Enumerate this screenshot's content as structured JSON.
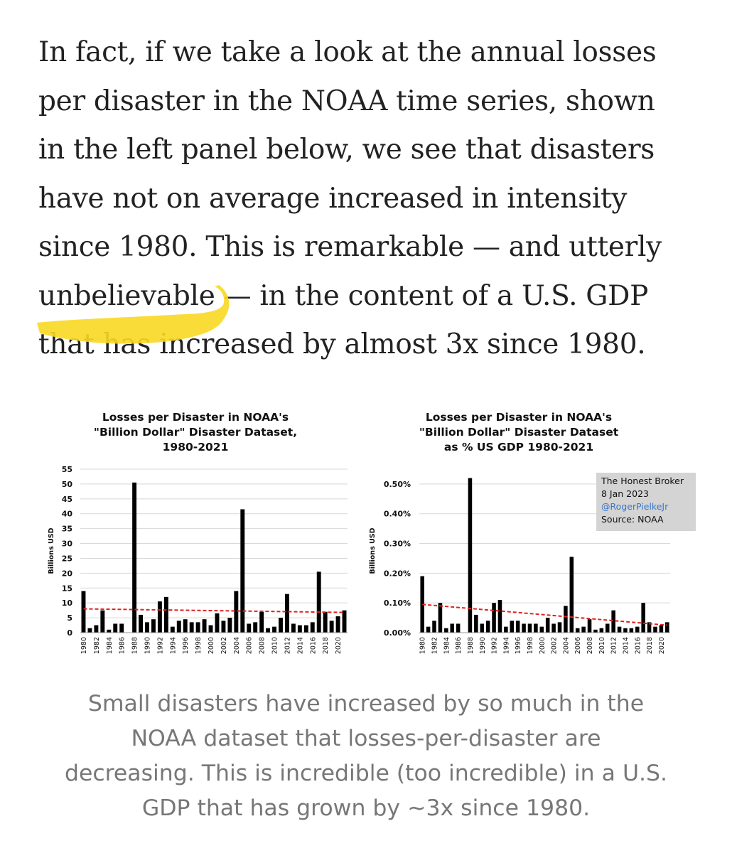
{
  "article": {
    "lines": [
      "In fact, if we take a look at the annual losses",
      "per disaster in the NOAA time series, shown",
      "in the left panel below, we see that disasters",
      "have not on average increased in intensity",
      "since 1980. This is remarkable — and utterly"
    ],
    "line6_highlight": "unbelievable",
    "line6_rest": " — in the content of a U.S. GDP",
    "line7": "that has increased by almost 3x since 1980.",
    "highlight_color": "#f9d824"
  },
  "watermark": {
    "line1": "The Honest Broker",
    "line2": "8 Jan 2023",
    "line3": "@RogerPielkeJr",
    "line4": "Source: NOAA"
  },
  "caption": {
    "lines": [
      "Small disasters have increased by so much in the",
      "NOAA dataset that losses-per-disaster are",
      "decreasing. This is incredible (too incredible) in a U.S.",
      "GDP that has grown by ~3x since 1980."
    ]
  },
  "chart_data": [
    {
      "type": "bar",
      "title": [
        "Losses per Disaster in NOAA's",
        "\"Billion Dollar\" Disaster Dataset,",
        "1980-2021"
      ],
      "xlabel": "",
      "ylabel": "Billions USD",
      "ylim": [
        0,
        55
      ],
      "yticks": [
        0,
        5,
        10,
        15,
        20,
        25,
        30,
        35,
        40,
        45,
        50,
        55
      ],
      "ytick_labels": [
        "0",
        "5",
        "10",
        "15",
        "20",
        "25",
        "30",
        "35",
        "40",
        "45",
        "50",
        "55"
      ],
      "grid": true,
      "categories": [
        1980,
        1981,
        1982,
        1983,
        1984,
        1985,
        1986,
        1987,
        1988,
        1989,
        1990,
        1991,
        1992,
        1993,
        1994,
        1995,
        1996,
        1997,
        1998,
        1999,
        2000,
        2001,
        2002,
        2003,
        2004,
        2005,
        2006,
        2007,
        2008,
        2009,
        2010,
        2011,
        2012,
        2013,
        2014,
        2015,
        2016,
        2017,
        2018,
        2019,
        2020,
        2021
      ],
      "xtick_labels": [
        "1980",
        "1982",
        "1984",
        "1986",
        "1988",
        "1990",
        "1992",
        "1994",
        "1996",
        "1998",
        "2000",
        "2002",
        "2004",
        "2006",
        "2008",
        "2010",
        "2012",
        "2014",
        "2016",
        "2018",
        "2020"
      ],
      "values": [
        14,
        1.5,
        2.5,
        7.5,
        1,
        3,
        3,
        0,
        50.5,
        6,
        3.5,
        4.5,
        10.5,
        12,
        2,
        4,
        4.5,
        3.5,
        3.5,
        4.5,
        2.5,
        6.5,
        4,
        5,
        14,
        41.5,
        3,
        3.5,
        7,
        1.5,
        2,
        5,
        13,
        3,
        2.5,
        2.5,
        3.5,
        20.5,
        7,
        4,
        5.5,
        7.5
      ],
      "trend": {
        "start": 8,
        "end": 6.8,
        "style": "red dashed"
      }
    },
    {
      "type": "bar",
      "title": [
        "Losses per Disaster in NOAA's",
        "\"Billion Dollar\" Disaster Dataset",
        "as % US GDP 1980-2021"
      ],
      "xlabel": "",
      "ylabel": "Billions USD",
      "ylim": [
        0,
        0.55
      ],
      "yticks": [
        0,
        0.1,
        0.2,
        0.3,
        0.4,
        0.5
      ],
      "ytick_labels": [
        "0.00%",
        "0.10%",
        "0.20%",
        "0.30%",
        "0.40%",
        "0.50%"
      ],
      "grid": true,
      "categories": [
        1980,
        1981,
        1982,
        1983,
        1984,
        1985,
        1986,
        1987,
        1988,
        1989,
        1990,
        1991,
        1992,
        1993,
        1994,
        1995,
        1996,
        1997,
        1998,
        1999,
        2000,
        2001,
        2002,
        2003,
        2004,
        2005,
        2006,
        2007,
        2008,
        2009,
        2010,
        2011,
        2012,
        2013,
        2014,
        2015,
        2016,
        2017,
        2018,
        2019,
        2020,
        2021
      ],
      "xtick_labels": [
        "1980",
        "1982",
        "1984",
        "1986",
        "1988",
        "1990",
        "1992",
        "1994",
        "1996",
        "1998",
        "2000",
        "2002",
        "2004",
        "2006",
        "2008",
        "2010",
        "2012",
        "2014",
        "2016",
        "2018",
        "2020"
      ],
      "values": [
        0.19,
        0.02,
        0.04,
        0.1,
        0.015,
        0.03,
        0.03,
        0,
        0.52,
        0.06,
        0.03,
        0.04,
        0.1,
        0.11,
        0.02,
        0.04,
        0.04,
        0.03,
        0.03,
        0.03,
        0.02,
        0.05,
        0.03,
        0.035,
        0.09,
        0.255,
        0.015,
        0.02,
        0.045,
        0.01,
        0.015,
        0.03,
        0.075,
        0.02,
        0.015,
        0.015,
        0.02,
        0.1,
        0.035,
        0.02,
        0.025,
        0.035
      ],
      "trend": {
        "start": 0.095,
        "end": 0.025,
        "style": "red dashed"
      }
    }
  ]
}
